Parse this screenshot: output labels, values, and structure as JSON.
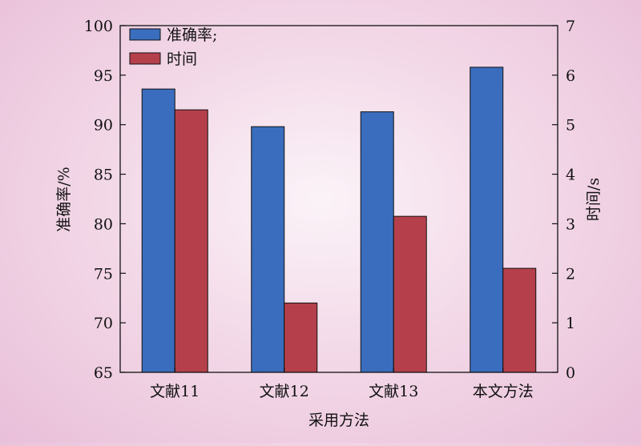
{
  "chart_data": {
    "type": "bar",
    "categories": [
      "文献11",
      "文献12",
      "文献13",
      "本文方法"
    ],
    "series": [
      {
        "name": "准确率;",
        "axis": "left",
        "color": "#3a6dbd",
        "values": [
          93.6,
          89.8,
          91.3,
          95.8
        ]
      },
      {
        "name": "时间",
        "axis": "right",
        "color": "#b5404b",
        "values": [
          5.3,
          1.4,
          3.15,
          2.1
        ]
      }
    ],
    "xlabel": "采用方法",
    "ylabel": "准确率/%",
    "y2label": "时间/s",
    "ylim": [
      65,
      100
    ],
    "y2lim": [
      0,
      7
    ],
    "yticks": [
      65,
      70,
      75,
      80,
      85,
      90,
      95,
      100
    ],
    "y2ticks": [
      0,
      1,
      2,
      3,
      4,
      5,
      6,
      7
    ],
    "legend": "top-left",
    "grid": false
  }
}
